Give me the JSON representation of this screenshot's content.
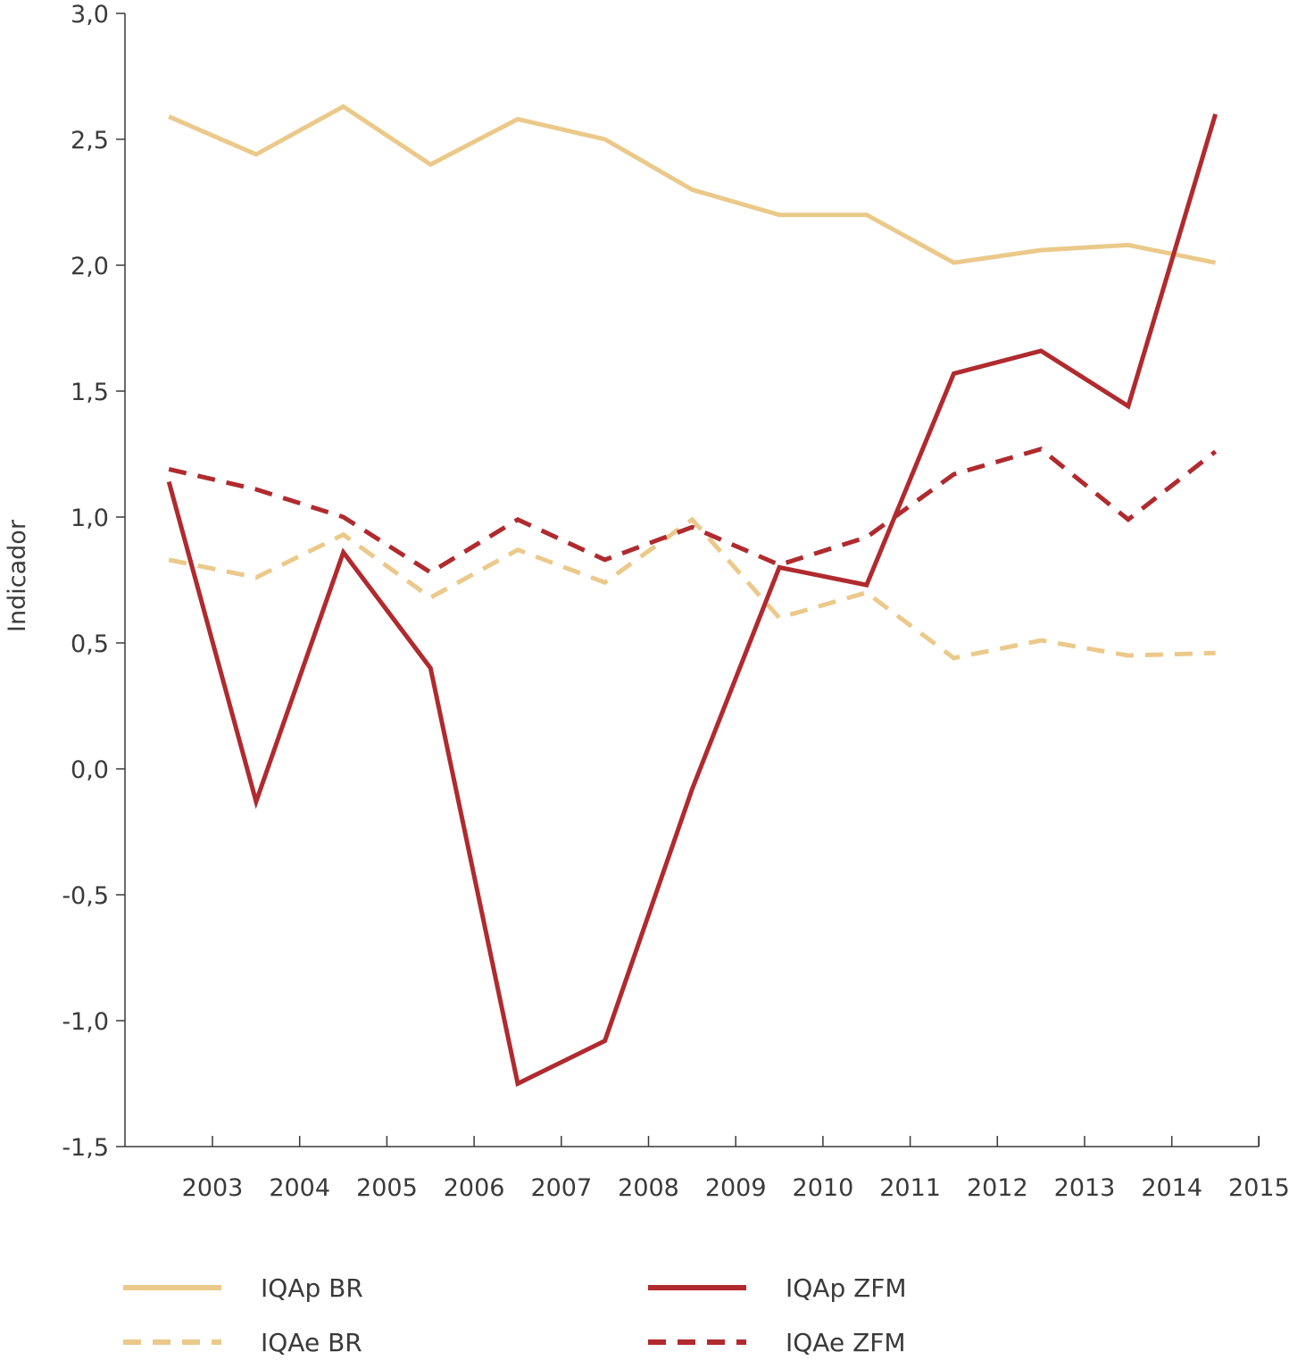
{
  "chart_data": {
    "type": "line",
    "ylabel": "Indicador",
    "xlabel": "",
    "ylim": [
      -1.5,
      3.0
    ],
    "yticks": [
      "3,0",
      "2,5",
      "2,0",
      "1,5",
      "1,0",
      "0,5",
      "0,0",
      "-0,5",
      "-1,0",
      "-1,5"
    ],
    "ytick_values": [
      3.0,
      2.5,
      2.0,
      1.5,
      1.0,
      0.5,
      0.0,
      -0.5,
      -1.0,
      -1.5
    ],
    "categories": [
      "2003",
      "2004",
      "2005",
      "2006",
      "2007",
      "2008",
      "2009",
      "2010",
      "2011",
      "2012",
      "2013",
      "2014",
      "2015"
    ],
    "grid": false,
    "legend_position": "bottom",
    "series": [
      {
        "name": "IQAp BR",
        "color": "#ebc98a",
        "dash": "solid",
        "values": [
          2.59,
          2.44,
          2.63,
          2.4,
          2.58,
          2.5,
          2.3,
          2.2,
          2.2,
          2.01,
          2.06,
          2.08,
          2.01
        ]
      },
      {
        "name": "IQAe BR",
        "color": "#ebc98a",
        "dash": "dashed",
        "values": [
          0.83,
          0.76,
          0.93,
          0.68,
          0.87,
          0.74,
          0.99,
          0.6,
          0.7,
          0.44,
          0.51,
          0.45,
          0.46
        ]
      },
      {
        "name": "IQAp ZFM",
        "color": "#b02a2e",
        "dash": "solid",
        "values": [
          1.14,
          -0.13,
          0.86,
          0.4,
          -1.25,
          -1.08,
          -0.08,
          0.8,
          0.73,
          1.57,
          1.66,
          1.44,
          2.6
        ]
      },
      {
        "name": "IQAe ZFM",
        "color": "#b02a2e",
        "dash": "dashed",
        "values": [
          1.19,
          1.11,
          1.0,
          0.78,
          0.99,
          0.83,
          0.96,
          0.81,
          0.92,
          1.17,
          1.27,
          0.99,
          1.26
        ]
      }
    ]
  }
}
